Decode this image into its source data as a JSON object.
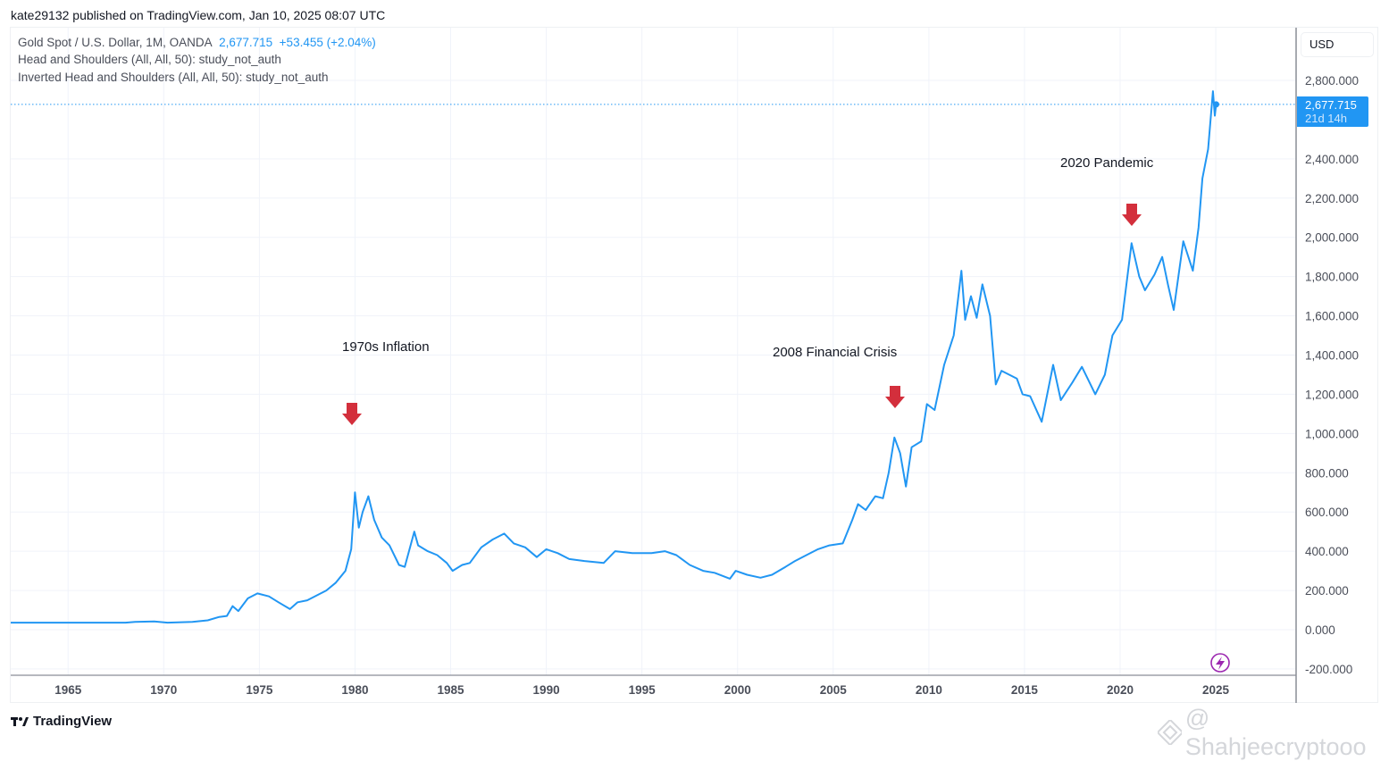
{
  "header": {
    "publisher": "kate29132 published on TradingView.com, Jan 10, 2025 08:07 UTC"
  },
  "legend": {
    "symbol": "Gold Spot / U.S. Dollar, 1M, OANDA",
    "last": "2,677.715",
    "change": "+53.455 (+2.04%)",
    "study1": "Head and Shoulders (All, All, 50): study_not_auth",
    "study2": "Inverted Head and Shoulders (All, All, 50): study_not_auth"
  },
  "price_axis": {
    "currency": "USD",
    "last_label": "2,677.715",
    "countdown": "21d 14h"
  },
  "annotations": {
    "a1": "1970s Inflation",
    "a2": "2008 Financial Crisis",
    "a3": "2020 Pandemic"
  },
  "footer": {
    "brand": "TradingView",
    "watermark": "@ Shahjeecryptooo"
  },
  "colors": {
    "line": "#2196f3",
    "arrow": "#d32f3c",
    "grid": "#f0f3fa",
    "event_icon": "#9c27b0"
  },
  "chart_data": {
    "type": "line",
    "title": "Gold Spot / U.S. Dollar, 1M, OANDA",
    "xlim": [
      1962,
      2029.2
    ],
    "ylim": [
      -230,
      3220
    ],
    "x_ticks": [
      "1965",
      "1970",
      "1975",
      "1980",
      "1985",
      "1990",
      "1995",
      "2000",
      "2005",
      "2010",
      "2015",
      "2020",
      "2025"
    ],
    "y_ticks": [
      "-200.000",
      "0.000",
      "200.000",
      "400.000",
      "600.000",
      "800.000",
      "1,000.000",
      "1,200.000",
      "1,400.000",
      "1,600.000",
      "1,800.000",
      "2,000.000",
      "2,200.000",
      "2,400.000",
      "2,800.000"
    ],
    "y_tick_values": [
      -200,
      0,
      200,
      400,
      600,
      800,
      1000,
      1200,
      1400,
      1600,
      1800,
      2000,
      2200,
      2400,
      2800
    ],
    "last_price": 2677.715,
    "grid": true,
    "series": [
      {
        "points": [
          [
            1962,
            36
          ],
          [
            1968,
            36
          ],
          [
            1968.5,
            40
          ],
          [
            1969.5,
            42
          ],
          [
            1970.2,
            36
          ],
          [
            1971.5,
            40
          ],
          [
            1972.3,
            48
          ],
          [
            1972.9,
            65
          ],
          [
            1973.3,
            70
          ],
          [
            1973.6,
            120
          ],
          [
            1973.9,
            95
          ],
          [
            1974.4,
            160
          ],
          [
            1974.9,
            185
          ],
          [
            1975.5,
            170
          ],
          [
            1976,
            140
          ],
          [
            1976.6,
            105
          ],
          [
            1977,
            140
          ],
          [
            1977.5,
            150
          ],
          [
            1978,
            175
          ],
          [
            1978.5,
            200
          ],
          [
            1979,
            240
          ],
          [
            1979.5,
            300
          ],
          [
            1979.8,
            410
          ],
          [
            1980.0,
            700
          ],
          [
            1980.2,
            520
          ],
          [
            1980.4,
            600
          ],
          [
            1980.7,
            680
          ],
          [
            1981,
            560
          ],
          [
            1981.4,
            470
          ],
          [
            1981.8,
            430
          ],
          [
            1982.3,
            330
          ],
          [
            1982.6,
            320
          ],
          [
            1983.1,
            500
          ],
          [
            1983.3,
            430
          ],
          [
            1983.8,
            400
          ],
          [
            1984.3,
            380
          ],
          [
            1984.8,
            340
          ],
          [
            1985.1,
            300
          ],
          [
            1985.6,
            330
          ],
          [
            1986,
            340
          ],
          [
            1986.6,
            420
          ],
          [
            1987.2,
            460
          ],
          [
            1987.8,
            490
          ],
          [
            1988.3,
            440
          ],
          [
            1988.9,
            420
          ],
          [
            1989.5,
            370
          ],
          [
            1990,
            410
          ],
          [
            1990.6,
            390
          ],
          [
            1991.2,
            360
          ],
          [
            1992,
            350
          ],
          [
            1993,
            340
          ],
          [
            1993.6,
            400
          ],
          [
            1994.5,
            390
          ],
          [
            1995.5,
            390
          ],
          [
            1996.2,
            400
          ],
          [
            1996.8,
            380
          ],
          [
            1997.5,
            330
          ],
          [
            1998.2,
            300
          ],
          [
            1998.8,
            290
          ],
          [
            1999.6,
            260
          ],
          [
            1999.9,
            300
          ],
          [
            2000.5,
            280
          ],
          [
            2001.2,
            265
          ],
          [
            2001.8,
            280
          ],
          [
            2002.5,
            320
          ],
          [
            2003,
            350
          ],
          [
            2003.6,
            380
          ],
          [
            2004.2,
            410
          ],
          [
            2004.8,
            430
          ],
          [
            2005.5,
            440
          ],
          [
            2006,
            560
          ],
          [
            2006.3,
            640
          ],
          [
            2006.7,
            610
          ],
          [
            2007.2,
            680
          ],
          [
            2007.6,
            670
          ],
          [
            2007.9,
            800
          ],
          [
            2008.2,
            980
          ],
          [
            2008.5,
            900
          ],
          [
            2008.8,
            730
          ],
          [
            2009.1,
            930
          ],
          [
            2009.6,
            960
          ],
          [
            2009.9,
            1150
          ],
          [
            2010.3,
            1120
          ],
          [
            2010.8,
            1350
          ],
          [
            2011.3,
            1500
          ],
          [
            2011.7,
            1830
          ],
          [
            2011.9,
            1580
          ],
          [
            2012.2,
            1700
          ],
          [
            2012.5,
            1590
          ],
          [
            2012.8,
            1760
          ],
          [
            2013.2,
            1600
          ],
          [
            2013.5,
            1250
          ],
          [
            2013.8,
            1320
          ],
          [
            2014.2,
            1300
          ],
          [
            2014.6,
            1280
          ],
          [
            2014.9,
            1200
          ],
          [
            2015.3,
            1190
          ],
          [
            2015.9,
            1060
          ],
          [
            2016.5,
            1350
          ],
          [
            2016.9,
            1170
          ],
          [
            2017.5,
            1260
          ],
          [
            2018,
            1340
          ],
          [
            2018.7,
            1200
          ],
          [
            2019.2,
            1300
          ],
          [
            2019.6,
            1500
          ],
          [
            2020.1,
            1580
          ],
          [
            2020.6,
            1970
          ],
          [
            2021,
            1800
          ],
          [
            2021.3,
            1730
          ],
          [
            2021.8,
            1810
          ],
          [
            2022.2,
            1900
          ],
          [
            2022.5,
            1760
          ],
          [
            2022.8,
            1630
          ],
          [
            2023.3,
            1980
          ],
          [
            2023.8,
            1830
          ],
          [
            2024.1,
            2050
          ],
          [
            2024.3,
            2300
          ],
          [
            2024.6,
            2450
          ],
          [
            2024.85,
            2745
          ],
          [
            2024.95,
            2620
          ],
          [
            2025.02,
            2677.715
          ]
        ]
      }
    ]
  }
}
